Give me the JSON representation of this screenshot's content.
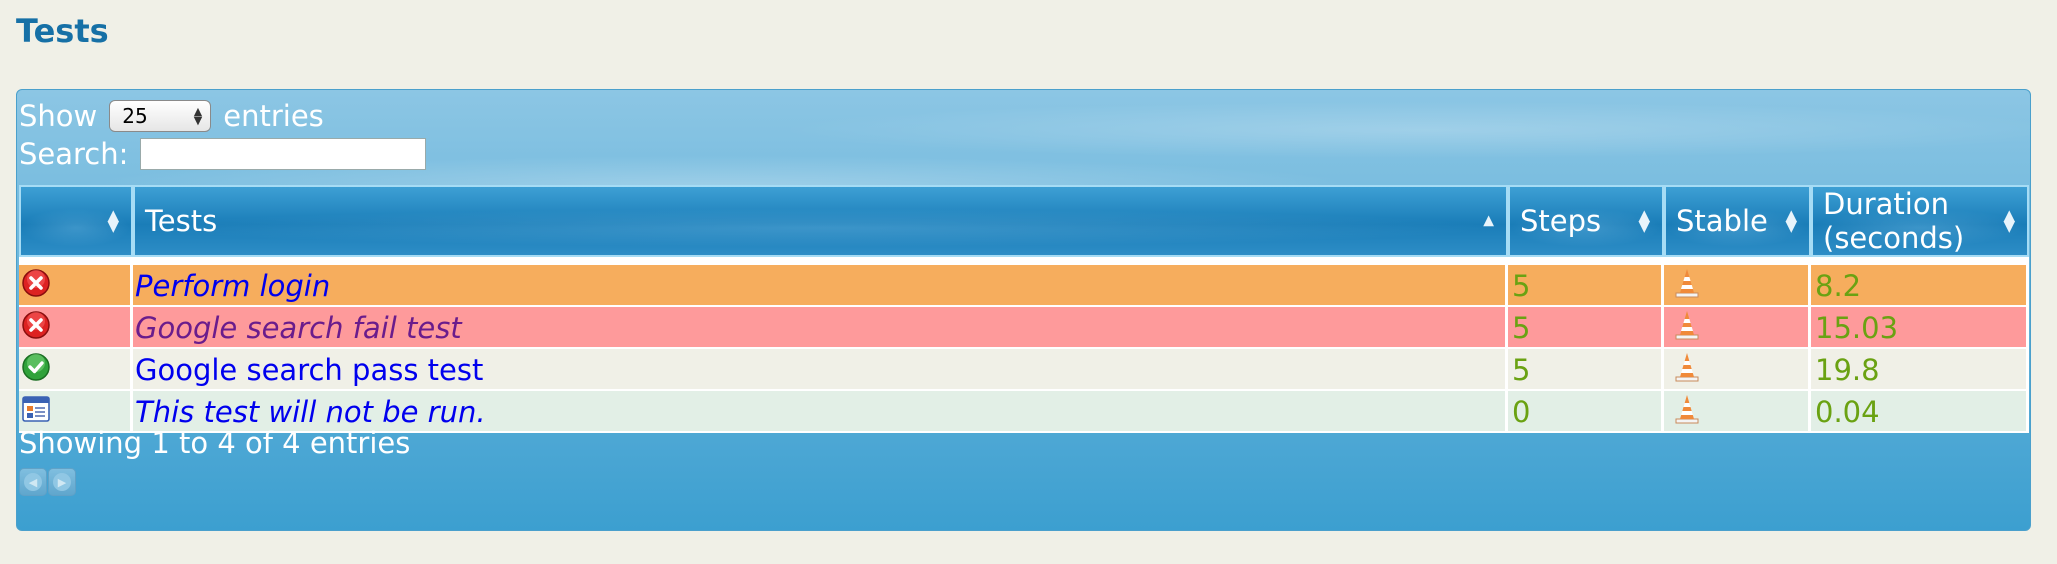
{
  "page": {
    "title": "Tests"
  },
  "controls": {
    "show_label": "Show",
    "page_size": "25",
    "entries_label": "entries",
    "search_label": "Search:",
    "search_value": ""
  },
  "columns": [
    {
      "label": ""
    },
    {
      "label": "Tests"
    },
    {
      "label": "Steps"
    },
    {
      "label": "Stable"
    },
    {
      "label": "Duration (seconds)",
      "line1": "Duration",
      "line2": "(seconds)"
    }
  ],
  "rows": [
    {
      "status": "failed",
      "status_icon": "red-x-icon",
      "name": "Perform login",
      "steps": "5",
      "stable_icon": "warning-cone-icon",
      "duration": "8.2"
    },
    {
      "status": "failed",
      "status_icon": "red-x-icon",
      "name": "Google search fail test",
      "steps": "5",
      "stable_icon": "warning-cone-icon",
      "duration": "15.03"
    },
    {
      "status": "passed",
      "status_icon": "green-check-icon",
      "name": "Google search pass test",
      "steps": "5",
      "stable_icon": "warning-cone-icon",
      "duration": "19.8"
    },
    {
      "status": "skipped",
      "status_icon": "calendar-icon",
      "name": "This test will not be run.",
      "steps": "0",
      "stable_icon": "warning-cone-icon",
      "duration": "0.04"
    }
  ],
  "footer": {
    "info": "Showing 1 to 4 of 4 entries"
  },
  "colors": {
    "title": "#1670a6",
    "failed_row": "#f6ad5d",
    "failed_row_alt": "#fe9a9b",
    "passed_row": "#f0f0e7",
    "skipped_row": "#e2efe6",
    "number": "#6aa212",
    "link": "#0000ee"
  }
}
